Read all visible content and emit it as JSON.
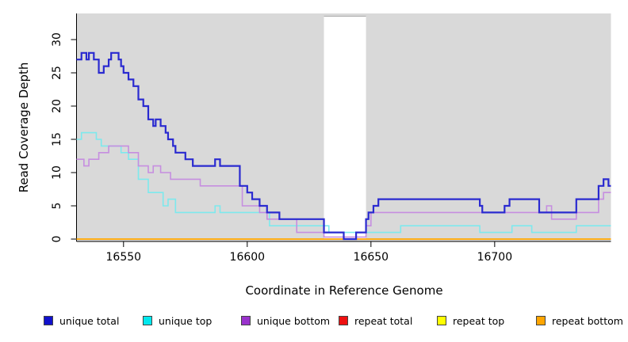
{
  "figure": {
    "x_axis_label": "Coordinate in Reference Genome",
    "y_axis_label": "Read Coverage Depth"
  },
  "chart_data": {
    "type": "line",
    "subtype": "step-coverage-plot",
    "title": "",
    "xlabel": "Coordinate in Reference Genome",
    "ylabel": "Read Coverage Depth",
    "xlim": [
      16531,
      16747
    ],
    "ylim": [
      0,
      33.9
    ],
    "x_ticks": [
      16550,
      16600,
      16650,
      16700
    ],
    "y_ticks": [
      0,
      5,
      10,
      15,
      20,
      25,
      30
    ],
    "grid": false,
    "legend_position": "bottom",
    "panel_background": "#d9d9d9",
    "masked_region": {
      "x_start": 16631,
      "x_end": 16648,
      "color": "#ffffff",
      "edge_color": "#aaaaaa"
    },
    "axis_color": "#000000",
    "series": [
      {
        "name": "unique total",
        "color": "#2a2ad0",
        "legend_color": "#1111cc",
        "width": 2.2,
        "points": [
          [
            16531,
            27
          ],
          [
            16533,
            28
          ],
          [
            16535,
            27
          ],
          [
            16536,
            28
          ],
          [
            16538,
            27
          ],
          [
            16540,
            25
          ],
          [
            16542,
            26
          ],
          [
            16544,
            27
          ],
          [
            16545,
            28
          ],
          [
            16548,
            27
          ],
          [
            16549,
            26
          ],
          [
            16550,
            25
          ],
          [
            16552,
            24
          ],
          [
            16554,
            23
          ],
          [
            16556,
            21
          ],
          [
            16558,
            20
          ],
          [
            16560,
            18
          ],
          [
            16562,
            17
          ],
          [
            16563,
            18
          ],
          [
            16565,
            17
          ],
          [
            16567,
            16
          ],
          [
            16568,
            15
          ],
          [
            16570,
            14
          ],
          [
            16571,
            13
          ],
          [
            16575,
            12
          ],
          [
            16578,
            11
          ],
          [
            16587,
            12
          ],
          [
            16589,
            11
          ],
          [
            16597,
            8
          ],
          [
            16600,
            7
          ],
          [
            16602,
            6
          ],
          [
            16605,
            5
          ],
          [
            16608,
            4
          ],
          [
            16613,
            3
          ],
          [
            16631,
            1
          ],
          [
            16639,
            0
          ],
          [
            16644,
            1
          ],
          [
            16648,
            3
          ],
          [
            16649,
            4
          ],
          [
            16651,
            5
          ],
          [
            16653,
            6
          ],
          [
            16694,
            5
          ],
          [
            16695,
            4
          ],
          [
            16704,
            5
          ],
          [
            16706,
            6
          ],
          [
            16718,
            4
          ],
          [
            16733,
            6
          ],
          [
            16742,
            8
          ],
          [
            16744,
            9
          ],
          [
            16746,
            8
          ]
        ]
      },
      {
        "name": "unique top",
        "color": "#7de9ed",
        "legend_color": "#00e8ee",
        "width": 1.6,
        "points": [
          [
            16531,
            15
          ],
          [
            16533,
            16
          ],
          [
            16539,
            15
          ],
          [
            16541,
            14
          ],
          [
            16549,
            13
          ],
          [
            16552,
            12
          ],
          [
            16556,
            9
          ],
          [
            16560,
            7
          ],
          [
            16566,
            5
          ],
          [
            16568,
            6
          ],
          [
            16571,
            4
          ],
          [
            16587,
            5
          ],
          [
            16589,
            4
          ],
          [
            16609,
            2
          ],
          [
            16633,
            1
          ],
          [
            16662,
            2
          ],
          [
            16694,
            1
          ],
          [
            16707,
            2
          ],
          [
            16715,
            1
          ],
          [
            16733,
            2
          ]
        ]
      },
      {
        "name": "unique bottom",
        "color": "#c68ee0",
        "legend_color": "#9932cc",
        "width": 1.6,
        "points": [
          [
            16531,
            12
          ],
          [
            16534,
            11
          ],
          [
            16536,
            12
          ],
          [
            16540,
            13
          ],
          [
            16544,
            14
          ],
          [
            16552,
            13
          ],
          [
            16556,
            11
          ],
          [
            16560,
            10
          ],
          [
            16562,
            11
          ],
          [
            16565,
            10
          ],
          [
            16569,
            9
          ],
          [
            16581,
            8
          ],
          [
            16598,
            5
          ],
          [
            16605,
            4
          ],
          [
            16608,
            3
          ],
          [
            16620,
            1
          ],
          [
            16631,
            0.3
          ],
          [
            16648,
            2
          ],
          [
            16650,
            4
          ],
          [
            16721,
            5
          ],
          [
            16723,
            3
          ],
          [
            16733,
            4
          ],
          [
            16742,
            6
          ],
          [
            16744,
            7
          ]
        ]
      },
      {
        "name": "repeat total",
        "color": "#ee2222",
        "legend_color": "#ee1111",
        "width": 1.4,
        "points": [
          [
            16531,
            0
          ]
        ]
      },
      {
        "name": "repeat top",
        "color": "#ffff33",
        "legend_color": "#ffff00",
        "width": 1.4,
        "points": [
          [
            16531,
            0
          ]
        ]
      },
      {
        "name": "repeat bottom",
        "color": "#ffa500",
        "legend_color": "#ffa500",
        "width": 1.6,
        "points": [
          [
            16531,
            0
          ]
        ]
      }
    ]
  }
}
